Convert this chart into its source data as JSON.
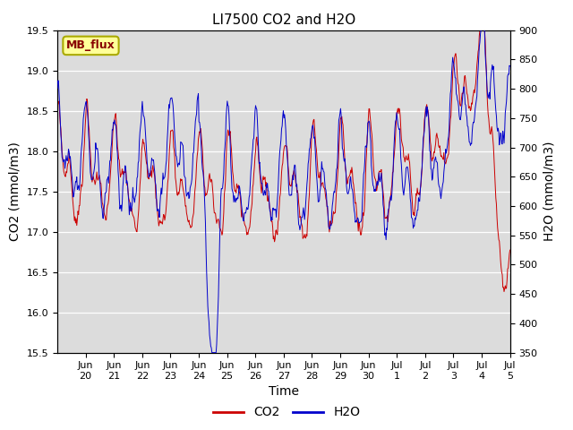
{
  "title": "LI7500 CO2 and H2O",
  "xlabel": "Time",
  "ylabel_left": "CO2 (mmol/m3)",
  "ylabel_right": "H2O (mmol/m3)",
  "co2_ylim": [
    15.5,
    19.5
  ],
  "h2o_ylim": [
    350,
    900
  ],
  "co2_color": "#cc0000",
  "h2o_color": "#0000cc",
  "plot_bg_color": "#dcdcdc",
  "annotation_text": "MB_flux",
  "annotation_bg": "#ffff99",
  "annotation_border": "#aaaa00",
  "annotation_text_color": "#880000",
  "tick_labels": [
    "Jun\n20",
    "Jun\n21",
    "Jun\n22",
    "Jun\n23",
    "Jun\n24",
    "Jun\n25",
    "Jun\n26",
    "Jun\n27",
    "Jun\n28",
    "Jun\n29",
    "Jun\n30",
    "Jul\n1",
    "Jul\n2",
    "Jul\n3",
    "Jul\n4",
    "Jul\n5"
  ],
  "legend_labels": [
    "CO2",
    "H2O"
  ],
  "title_fontsize": 11,
  "axis_label_fontsize": 10,
  "tick_fontsize": 8
}
